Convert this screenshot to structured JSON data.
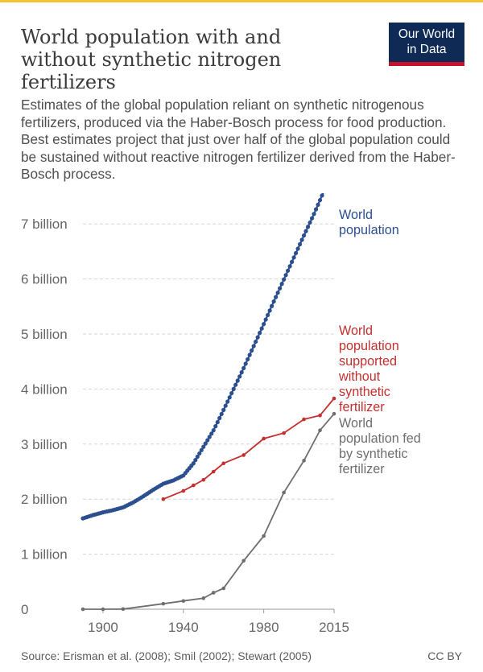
{
  "header": {
    "title_lines": [
      "World population with and",
      "without synthetic nitrogen",
      "fertilizers"
    ],
    "subtitle": "Estimates of the global population reliant on synthetic nitrogenous fertilizers, produced via the Haber-Bosch process for food production. Best estimates project that just over half of the global population could be sustained without reactive nitrogen fertilizer derived from the Haber-Bosch process.",
    "logo_lines": [
      "Our World",
      "in Data"
    ]
  },
  "footer": {
    "source": "Source: Erisman et al. (2008); Smil (2002); Stewart (2005)",
    "license": "CC BY"
  },
  "colors": {
    "accent_bar": "#f5c531",
    "logo_bg": "#0f2b55",
    "logo_red": "#c8102e",
    "world": "#2c4f8f",
    "without": "#c3302e",
    "fed": "#6e6e6e"
  },
  "chart_data": {
    "type": "line",
    "xlim": [
      1890,
      2015
    ],
    "ylim": [
      0,
      7.4
    ],
    "y_unit": "billion",
    "xticks": [
      1900,
      1940,
      1980,
      2015
    ],
    "xtick_labels": [
      "1900",
      "1940",
      "1980",
      "2015"
    ],
    "yticks": [
      0,
      1,
      2,
      3,
      4,
      5,
      6,
      7
    ],
    "ytick_labels": [
      "0",
      "1 billion",
      "2 billion",
      "3 billion",
      "4 billion",
      "5 billion",
      "6 billion",
      "7 billion"
    ],
    "grid": "horizontal dashed",
    "series": [
      {
        "key": "world",
        "name": "World population",
        "label_lines": [
          "World",
          "population"
        ],
        "marker_radius": 2.6,
        "points": [
          [
            1890,
            1.65
          ],
          [
            1895,
            1.71
          ],
          [
            1900,
            1.76
          ],
          [
            1905,
            1.8
          ],
          [
            1910,
            1.85
          ],
          [
            1915,
            1.94
          ],
          [
            1920,
            2.05
          ],
          [
            1925,
            2.17
          ],
          [
            1930,
            2.28
          ],
          [
            1935,
            2.34
          ],
          [
            1940,
            2.43
          ],
          [
            1945,
            2.65
          ],
          [
            1950,
            2.95
          ],
          [
            1955,
            3.25
          ],
          [
            1960,
            3.62
          ],
          [
            1965,
            4.0
          ],
          [
            1970,
            4.38
          ],
          [
            1975,
            4.78
          ],
          [
            1980,
            5.18
          ],
          [
            1985,
            5.59
          ],
          [
            1990,
            5.99
          ],
          [
            1995,
            6.39
          ],
          [
            2000,
            6.79
          ],
          [
            2005,
            7.18
          ],
          [
            2010,
            7.6
          ],
          [
            2015,
            7.95
          ]
        ]
      },
      {
        "key": "without",
        "name": "World population supported without synthetic fertilizer",
        "label_lines": [
          "World",
          "population",
          "supported",
          "without",
          "synthetic",
          "fertilizer"
        ],
        "marker_radius": 2.3,
        "points": [
          [
            1930,
            2.0
          ],
          [
            1940,
            2.15
          ],
          [
            1945,
            2.25
          ],
          [
            1950,
            2.35
          ],
          [
            1955,
            2.5
          ],
          [
            1960,
            2.65
          ],
          [
            1970,
            2.8
          ],
          [
            1980,
            3.1
          ],
          [
            1990,
            3.2
          ],
          [
            2000,
            3.45
          ],
          [
            2008,
            3.52
          ],
          [
            2015,
            3.83
          ]
        ]
      },
      {
        "key": "fed",
        "name": "World population fed by synthetic fertilizer",
        "label_lines": [
          "World",
          "population fed",
          "by synthetic",
          "fertilizer"
        ],
        "marker_radius": 2.3,
        "points": [
          [
            1890,
            0
          ],
          [
            1900,
            0
          ],
          [
            1910,
            0.003
          ],
          [
            1930,
            0.1
          ],
          [
            1940,
            0.15
          ],
          [
            1950,
            0.2
          ],
          [
            1955,
            0.3
          ],
          [
            1960,
            0.38
          ],
          [
            1970,
            0.88
          ],
          [
            1980,
            1.33
          ],
          [
            1990,
            2.12
          ],
          [
            2000,
            2.7
          ],
          [
            2008,
            3.25
          ],
          [
            2015,
            3.55
          ]
        ]
      }
    ]
  }
}
